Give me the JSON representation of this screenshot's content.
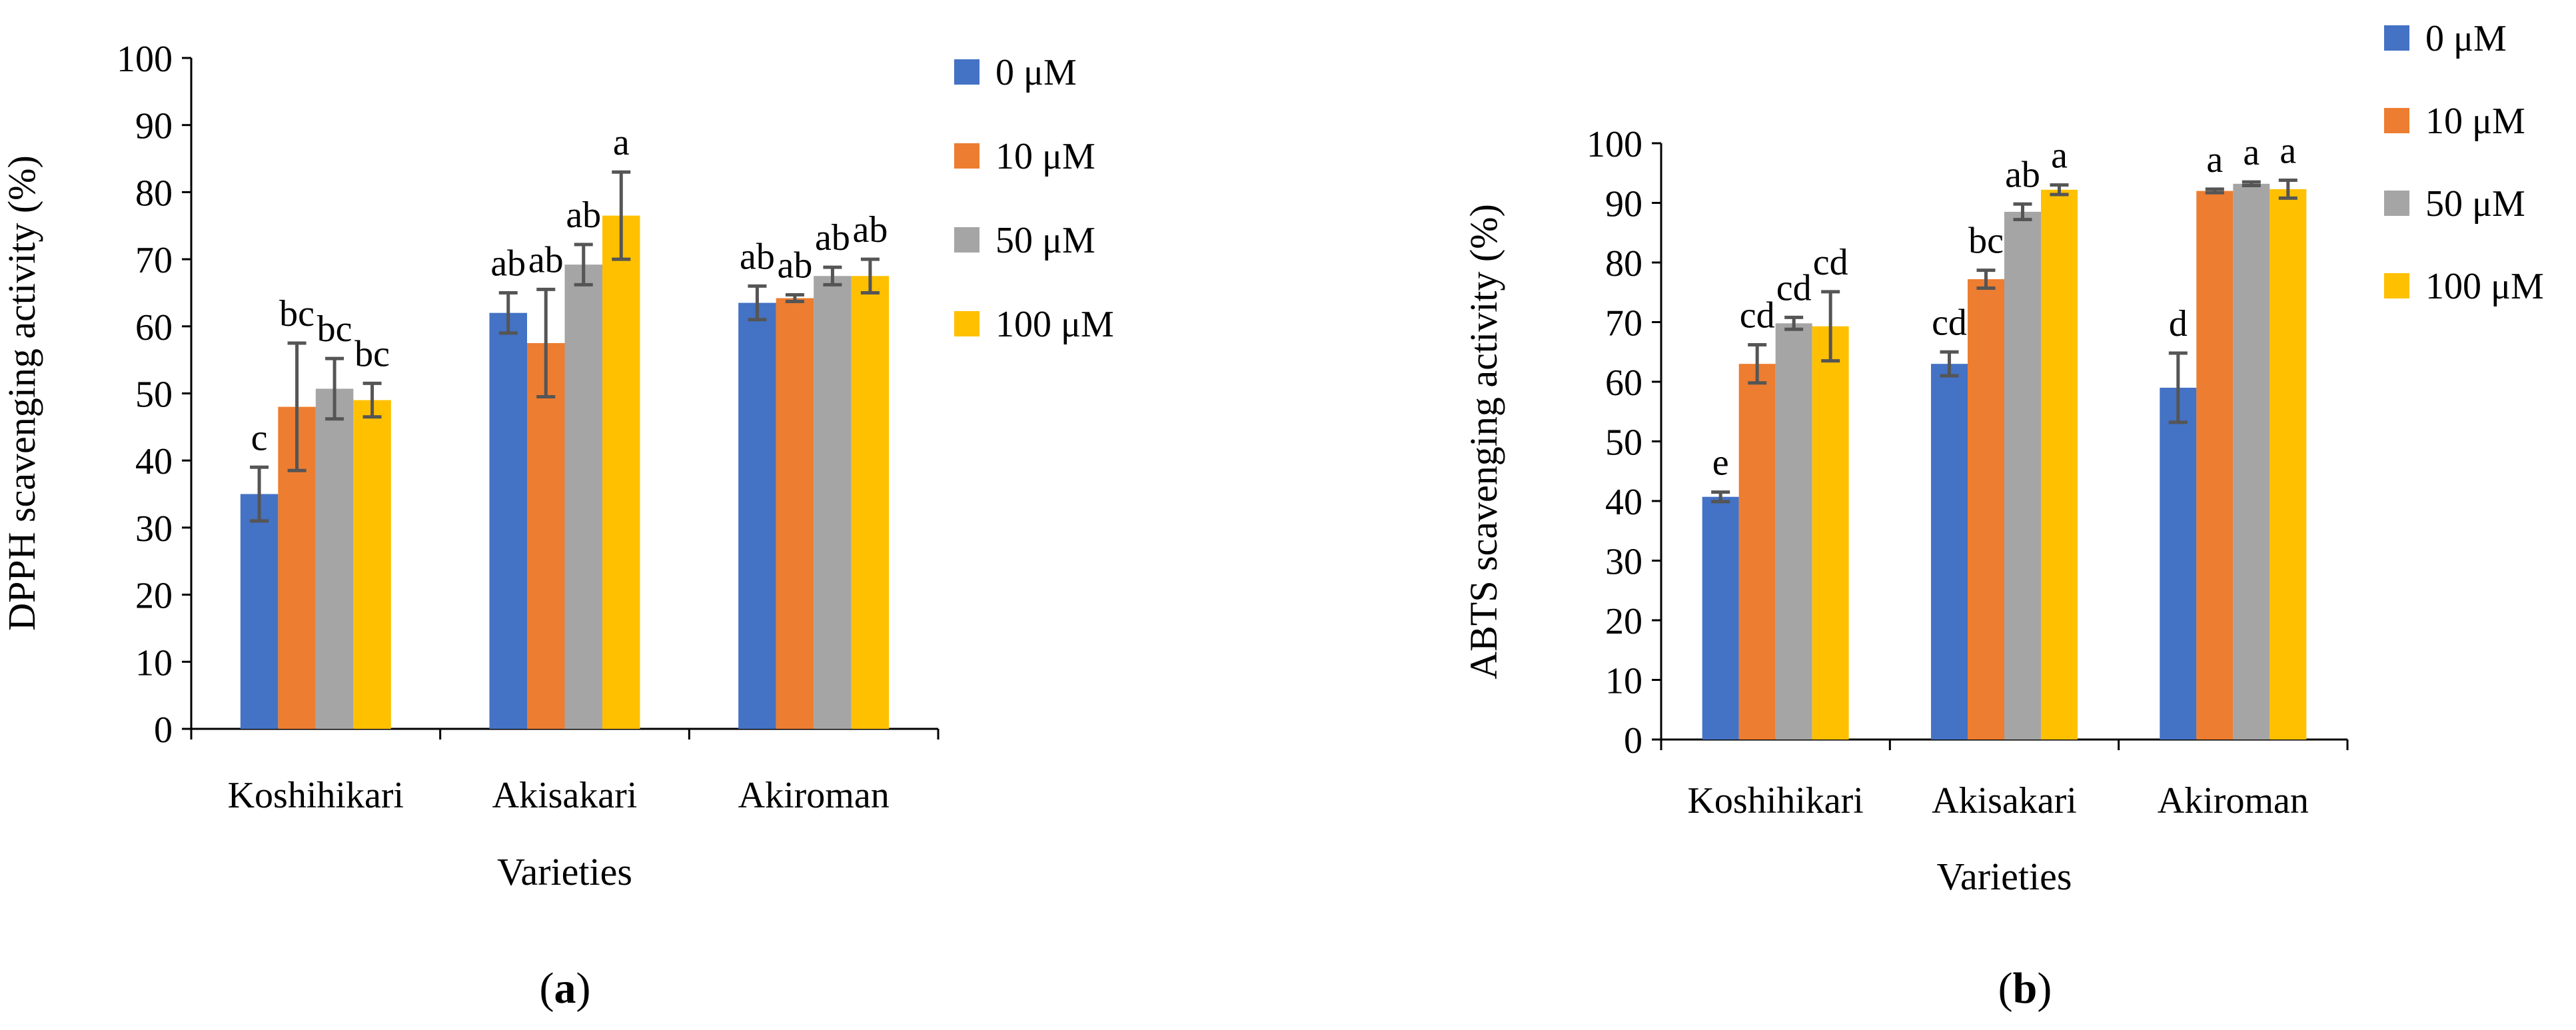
{
  "chart_data": [
    {
      "type": "bar",
      "panel_label": "a",
      "categories": [
        "Koshihikari",
        "Akisakari",
        "Akiroman"
      ],
      "series": [
        {
          "name": "0 μM",
          "color": "#4472C4",
          "values": [
            35,
            62,
            63.5
          ],
          "errors": [
            4,
            3,
            2.5
          ],
          "letters": [
            "c",
            "ab",
            "ab"
          ]
        },
        {
          "name": "10 μM",
          "color": "#ED7D31",
          "values": [
            48,
            57.5,
            64.2
          ],
          "errors": [
            9.5,
            8,
            0.5
          ],
          "letters": [
            "bc",
            "ab",
            "ab"
          ]
        },
        {
          "name": "50 μM",
          "color": "#A5A5A5",
          "values": [
            50.7,
            69.2,
            67.5
          ],
          "errors": [
            4.5,
            3,
            1.3
          ],
          "letters": [
            "bc",
            "ab",
            "ab"
          ]
        },
        {
          "name": "100 μM",
          "color": "#FFC000",
          "values": [
            49,
            76.5,
            67.5
          ],
          "errors": [
            2.5,
            6.5,
            2.5
          ],
          "letters": [
            "bc",
            "a",
            "ab"
          ]
        }
      ],
      "title": "",
      "xlabel": "Varieties",
      "ylabel": "DPPH scavenging activity (%)",
      "ylim": [
        0,
        100
      ],
      "yticks": [
        "0",
        "10",
        "20",
        "30",
        "40",
        "50",
        "60",
        "70",
        "80",
        "90",
        "100"
      ],
      "grid": false,
      "legend": "right"
    },
    {
      "type": "bar",
      "panel_label": "b",
      "categories": [
        "Koshihikari",
        "Akisakari",
        "Akiroman"
      ],
      "series": [
        {
          "name": "0 μM",
          "color": "#4472C4",
          "values": [
            40.7,
            63,
            59
          ],
          "errors": [
            0.8,
            2,
            5.8
          ],
          "letters": [
            "e",
            "cd",
            "d"
          ]
        },
        {
          "name": "10 μM",
          "color": "#ED7D31",
          "values": [
            63,
            77.2,
            92
          ],
          "errors": [
            3.2,
            1.5,
            0.3
          ],
          "letters": [
            "cd",
            "bc",
            "a"
          ]
        },
        {
          "name": "50 μM",
          "color": "#A5A5A5",
          "values": [
            69.8,
            88.5,
            93.2
          ],
          "errors": [
            1,
            1.3,
            0.3
          ],
          "letters": [
            "cd",
            "ab",
            "a"
          ]
        },
        {
          "name": "100 μM",
          "color": "#FFC000",
          "values": [
            69.3,
            92.2,
            92.3
          ],
          "errors": [
            5.8,
            0.8,
            1.5
          ],
          "letters": [
            "cd",
            "a",
            "a"
          ]
        }
      ],
      "title": "",
      "xlabel": "Varieties",
      "ylabel": "ABTS scavenging activity (%)",
      "ylim": [
        0,
        100
      ],
      "yticks": [
        "0",
        "10",
        "20",
        "30",
        "40",
        "50",
        "60",
        "70",
        "80",
        "90",
        "100"
      ],
      "grid": false,
      "legend": "right"
    }
  ]
}
